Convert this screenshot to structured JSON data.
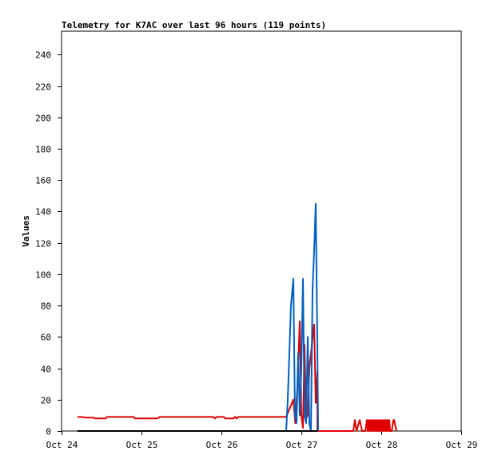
{
  "chart_data": {
    "type": "line",
    "title": "Telemetry for K7AC over last 96 hours (119 points)",
    "ylabel": "Values",
    "xlabel": "",
    "x_ticks": [
      "Oct 24",
      "Oct 25",
      "Oct 26",
      "Oct 27",
      "Oct 28",
      "Oct 29"
    ],
    "y_ticks": [
      0,
      20,
      40,
      60,
      80,
      100,
      120,
      140,
      160,
      180,
      200,
      220,
      240
    ],
    "xlim": [
      "Oct 24 00:00",
      "Oct 29 00:00"
    ],
    "ylim": [
      0,
      255
    ],
    "grid": false,
    "series": [
      {
        "color": "#e00000",
        "points": [
          [
            "Oct 24 04:48",
            9
          ],
          [
            "Oct 24 06:00",
            9
          ],
          [
            "Oct 24 07:12",
            8.5
          ],
          [
            "Oct 24 09:36",
            8.5
          ],
          [
            "Oct 24 10:05",
            8
          ],
          [
            "Oct 24 13:12",
            8
          ],
          [
            "Oct 24 13:40",
            9
          ],
          [
            "Oct 24 21:36",
            9
          ],
          [
            "Oct 24 22:05",
            8
          ],
          [
            "Oct 25 04:48",
            8
          ],
          [
            "Oct 25 05:31",
            9
          ],
          [
            "Oct 25 21:36",
            9
          ],
          [
            "Oct 25 22:05",
            8
          ],
          [
            "Oct 25 22:34",
            9
          ],
          [
            "Oct 26 00:43",
            9
          ],
          [
            "Oct 26 01:12",
            8
          ],
          [
            "Oct 26 03:36",
            8
          ],
          [
            "Oct 26 04:05",
            9
          ],
          [
            "Oct 26 04:34",
            8
          ],
          [
            "Oct 26 05:02",
            9
          ],
          [
            "Oct 26 19:26",
            9
          ],
          [
            "Oct 26 21:36",
            20
          ],
          [
            "Oct 26 22:10",
            5
          ],
          [
            "Oct 26 22:48",
            28
          ],
          [
            "Oct 26 23:31",
            70
          ],
          [
            "Oct 27 00:00",
            10
          ],
          [
            "Oct 27 00:29",
            2
          ],
          [
            "Oct 27 00:58",
            55
          ],
          [
            "Oct 27 01:26",
            8
          ],
          [
            "Oct 27 01:55",
            10
          ],
          [
            "Oct 27 02:24",
            40
          ],
          [
            "Oct 27 03:50",
            68
          ],
          [
            "Oct 27 04:19",
            18
          ],
          [
            "Oct 27 04:48",
            38
          ],
          [
            "Oct 27 04:48",
            0
          ],
          [
            "Oct 27 15:36",
            0
          ],
          [
            "Oct 27 16:05",
            7
          ],
          [
            "Oct 27 16:34",
            0
          ],
          [
            "Oct 27 17:31",
            7
          ],
          [
            "Oct 27 18:14",
            0
          ],
          [
            "Oct 27 19:12",
            0
          ],
          [
            "Oct 27 19:41",
            7
          ],
          [
            "Oct 27 19:55",
            0
          ],
          [
            "Oct 27 20:10",
            7
          ],
          [
            "Oct 27 20:24",
            0
          ],
          [
            "Oct 27 20:38",
            7
          ],
          [
            "Oct 27 20:53",
            0
          ],
          [
            "Oct 27 21:07",
            7
          ],
          [
            "Oct 27 21:22",
            0
          ],
          [
            "Oct 27 21:36",
            7
          ],
          [
            "Oct 27 21:50",
            0
          ],
          [
            "Oct 27 22:05",
            7
          ],
          [
            "Oct 27 22:19",
            0
          ],
          [
            "Oct 27 22:34",
            7
          ],
          [
            "Oct 27 22:48",
            0
          ],
          [
            "Oct 27 23:02",
            7
          ],
          [
            "Oct 27 23:17",
            0
          ],
          [
            "Oct 27 23:31",
            7
          ],
          [
            "Oct 27 23:46",
            0
          ],
          [
            "Oct 28 00:00",
            7
          ],
          [
            "Oct 28 00:14",
            0
          ],
          [
            "Oct 28 00:29",
            7
          ],
          [
            "Oct 28 00:43",
            0
          ],
          [
            "Oct 28 00:58",
            7
          ],
          [
            "Oct 28 01:12",
            0
          ],
          [
            "Oct 28 01:26",
            7
          ],
          [
            "Oct 28 01:41",
            0
          ],
          [
            "Oct 28 01:55",
            7
          ],
          [
            "Oct 28 02:10",
            0
          ],
          [
            "Oct 28 02:24",
            7
          ],
          [
            "Oct 28 02:38",
            0
          ],
          [
            "Oct 28 03:07",
            0
          ],
          [
            "Oct 28 03:36",
            7
          ],
          [
            "Oct 28 03:50",
            7
          ],
          [
            "Oct 28 04:34",
            0
          ]
        ]
      },
      {
        "color": "#0060c0",
        "points": [
          [
            "Oct 26 19:26",
            0
          ],
          [
            "Oct 26 19:55",
            20
          ],
          [
            "Oct 26 20:24",
            50
          ],
          [
            "Oct 26 20:53",
            80
          ],
          [
            "Oct 26 21:36",
            97
          ],
          [
            "Oct 26 22:05",
            10
          ],
          [
            "Oct 26 22:34",
            5
          ],
          [
            "Oct 26 23:02",
            50
          ],
          [
            "Oct 26 23:31",
            10
          ],
          [
            "Oct 27 00:00",
            40
          ],
          [
            "Oct 27 00:29",
            97
          ],
          [
            "Oct 27 00:58",
            10
          ],
          [
            "Oct 27 01:26",
            5
          ],
          [
            "Oct 27 01:55",
            60
          ],
          [
            "Oct 27 02:24",
            5
          ],
          [
            "Oct 27 02:53",
            0
          ],
          [
            "Oct 27 03:22",
            90
          ],
          [
            "Oct 27 03:50",
            115
          ],
          [
            "Oct 27 04:19",
            145
          ],
          [
            "Oct 27 04:48",
            55
          ],
          [
            "Oct 27 05:02",
            0
          ]
        ]
      },
      {
        "color": "#000000",
        "points": [
          [
            "Oct 24 04:48",
            0
          ],
          [
            "Oct 27 04:48",
            0
          ]
        ]
      }
    ]
  }
}
